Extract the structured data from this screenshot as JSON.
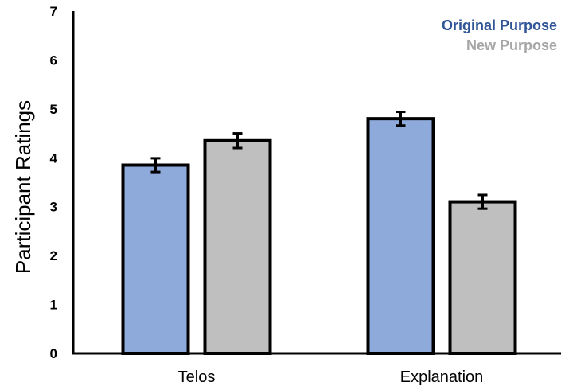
{
  "chart_data": {
    "type": "bar",
    "title": "",
    "xlabel": "",
    "ylabel": "Participant Ratings",
    "ylim": [
      0,
      7
    ],
    "yticks": [
      "0",
      "1",
      "2",
      "3",
      "4",
      "5",
      "6",
      "7"
    ],
    "categories": [
      "Telos",
      "Explanation"
    ],
    "series": [
      {
        "name": "Original Purpose",
        "color": "#8eaadb",
        "values": [
          3.85,
          4.8
        ],
        "errors": [
          0.14,
          0.14
        ]
      },
      {
        "name": "New Purpose",
        "color": "#bfbfbf",
        "values": [
          4.35,
          3.1
        ],
        "errors": [
          0.15,
          0.14
        ]
      }
    ],
    "legend": {
      "position": "top-right",
      "colors": [
        "#2f5597",
        "#a6a6a6"
      ]
    },
    "grid": false
  }
}
